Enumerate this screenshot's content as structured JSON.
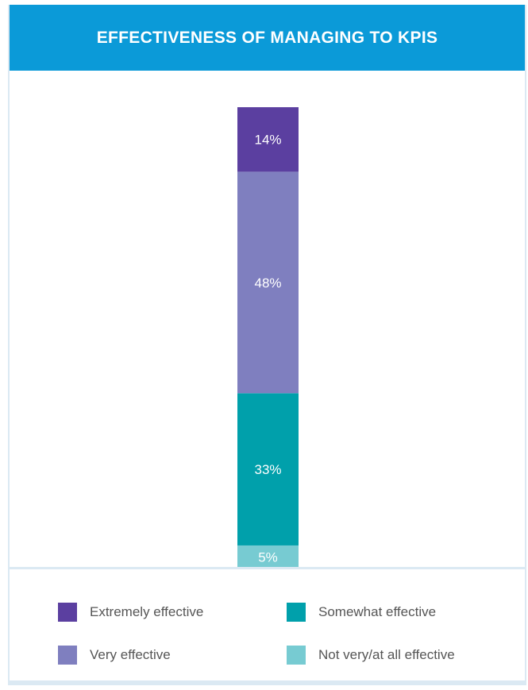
{
  "chart_data": {
    "type": "bar",
    "stacked": true,
    "title": "EFFECTIVENESS OF MANAGING TO KPIS",
    "ylim": [
      0,
      100
    ],
    "series": [
      {
        "name": "Extremely effective",
        "values": [
          14
        ],
        "label": "14%",
        "color": "#5b3fa0"
      },
      {
        "name": "Very effective",
        "values": [
          48
        ],
        "label": "48%",
        "color": "#7f7fbf"
      },
      {
        "name": "Somewhat effective",
        "values": [
          33
        ],
        "label": "33%",
        "color": "#00a0ab"
      },
      {
        "name": "Not very/at all effective",
        "values": [
          5
        ],
        "label": "5%",
        "color": "#77cbd2"
      }
    ],
    "legend_position": "bottom",
    "grid": false
  },
  "colors": {
    "header_bg": "#0b9ad8",
    "frame_border": "#dbe9f3"
  }
}
